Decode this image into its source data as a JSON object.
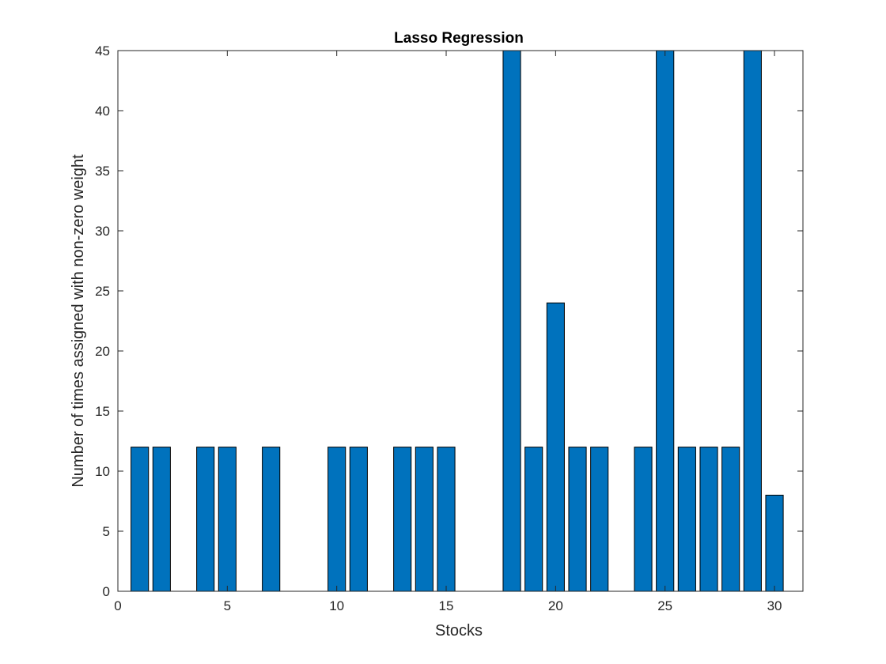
{
  "chart_data": {
    "type": "bar",
    "title": "Lasso Regression",
    "xlabel": "Stocks",
    "ylabel": "Number of times assigned with non-zero weight",
    "x": [
      1,
      2,
      3,
      4,
      5,
      6,
      7,
      8,
      9,
      10,
      11,
      12,
      13,
      14,
      15,
      16,
      17,
      18,
      19,
      20,
      21,
      22,
      23,
      24,
      25,
      26,
      27,
      28,
      29,
      30
    ],
    "values": [
      12,
      12,
      0,
      12,
      12,
      0,
      12,
      0,
      0,
      12,
      12,
      0,
      12,
      12,
      12,
      0,
      0,
      45,
      12,
      24,
      12,
      12,
      0,
      12,
      45,
      12,
      12,
      12,
      45,
      8
    ],
    "xlim": [
      0,
      31.3
    ],
    "ylim": [
      0,
      45
    ],
    "xticks": [
      "0",
      "5",
      "10",
      "15",
      "20",
      "25",
      "30"
    ],
    "yticks": [
      "0",
      "5",
      "10",
      "15",
      "20",
      "25",
      "30",
      "35",
      "40",
      "45"
    ],
    "bar_color": "#0072BD",
    "bar_edge_color": "#000000",
    "grid": false,
    "legend": "none"
  }
}
